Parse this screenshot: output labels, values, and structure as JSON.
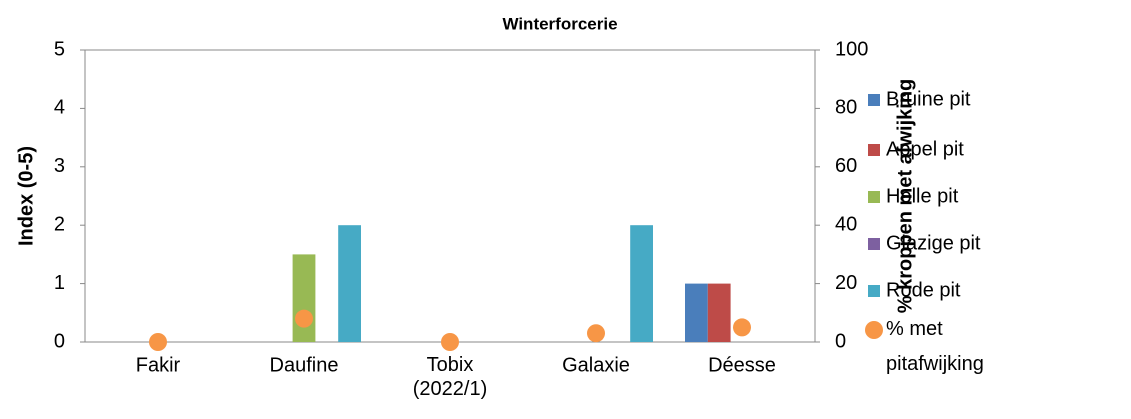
{
  "chart_data": {
    "type": "bar",
    "title": "Winterforcerie",
    "y_label": "Index (0-5)",
    "y2_label": "% kroppen met afwijking",
    "categories": [
      "Fakir",
      "Daufine",
      "Tobix (2022/1)",
      "Galaxie",
      "Déesse"
    ],
    "series": [
      {
        "name": "Bruine pit",
        "color": "#4a7ebb",
        "values": [
          0,
          0,
          0,
          0,
          1
        ]
      },
      {
        "name": "Appel pit",
        "color": "#be4b48",
        "values": [
          0,
          0,
          0,
          0,
          1
        ]
      },
      {
        "name": "Holle pit",
        "color": "#98b954",
        "values": [
          0,
          1.5,
          0,
          0,
          0
        ]
      },
      {
        "name": "Glazige pit",
        "color": "#7d60a0",
        "values": [
          0,
          0,
          0,
          0,
          0
        ]
      },
      {
        "name": "Rode pit",
        "color": "#46aac5",
        "values": [
          0,
          2,
          0,
          2,
          0
        ]
      },
      {
        "name": "% met pitafwijking",
        "color": "#f79646",
        "type": "scatter",
        "axis": "y2",
        "values": [
          0,
          8,
          0,
          3,
          5
        ]
      }
    ],
    "ylim": [
      0,
      5
    ],
    "yticks": [
      0,
      1,
      2,
      3,
      4,
      5
    ],
    "y2lim": [
      0,
      100
    ],
    "y2ticks": [
      0,
      20,
      40,
      60,
      80,
      100
    ],
    "legend": "right"
  }
}
